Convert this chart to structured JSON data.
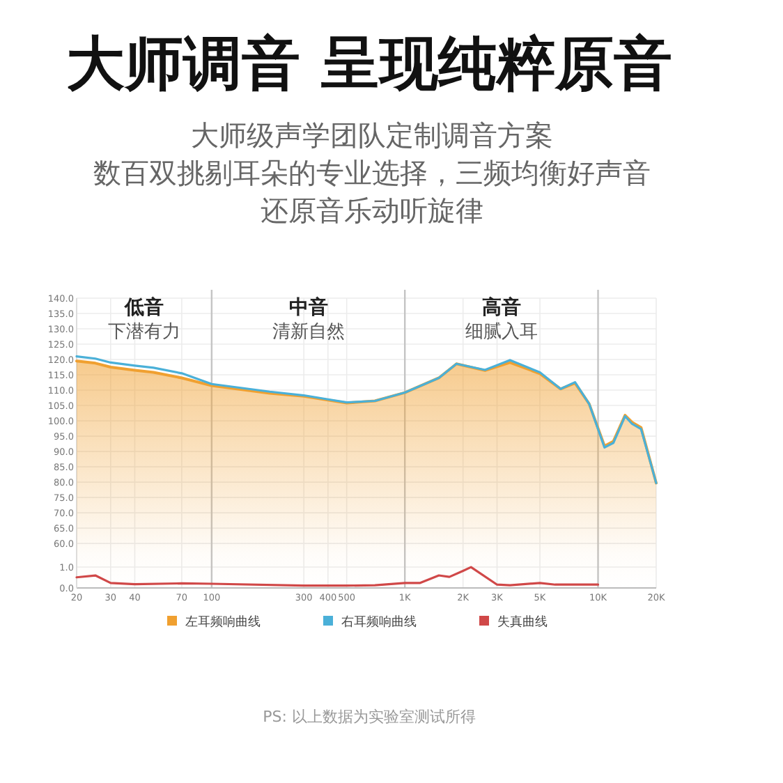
{
  "chart_data": {
    "type": "line",
    "title": "大师调音 呈现纯粹原音",
    "subtitle": "大师级声学团队定制调音方案",
    "log": "x",
    "xlim": [
      20,
      20000
    ],
    "xticks": [
      20,
      30,
      40,
      70,
      100,
      300,
      400,
      500,
      {
        "value": 1000,
        "label": "1K"
      },
      {
        "value": 2000,
        "label": "2K"
      },
      {
        "value": 3000,
        "label": "3K"
      },
      {
        "value": 5000,
        "label": "5K"
      },
      {
        "value": 10000,
        "label": "10K"
      },
      {
        "value": 20000,
        "label": "20K"
      }
    ],
    "ylim": [
      45.5,
      140
    ],
    "yticks": [
      {
        "value": 60,
        "label": "60.0"
      },
      {
        "value": 65,
        "label": "65.0"
      },
      {
        "value": 70,
        "label": "70.0"
      },
      {
        "value": 75,
        "label": "75.0"
      },
      {
        "value": 80,
        "label": "80.0"
      },
      {
        "value": 85,
        "label": "85.0"
      },
      {
        "value": 90,
        "label": "90.0"
      },
      {
        "value": 95,
        "label": "95.0"
      },
      {
        "value": 100,
        "label": "100.0"
      },
      {
        "value": 105,
        "label": "105.0"
      },
      {
        "value": 110,
        "label": "110.0"
      },
      {
        "value": 115,
        "label": "115.0"
      },
      {
        "value": 120,
        "label": "120.0"
      },
      {
        "value": 125,
        "label": "125.0"
      },
      {
        "value": 130,
        "label": "130.0"
      },
      {
        "value": 135,
        "label": "135.0"
      },
      {
        "value": 140,
        "label": "140.0"
      }
    ],
    "y2lim": [
      0,
      13.9
    ],
    "y2ticks": [
      {
        "value": 0,
        "label": "0.0"
      },
      {
        "value": 1,
        "label": "1.0"
      }
    ],
    "grid": true,
    "legend": "bottom",
    "x": [
      20,
      25,
      30,
      40,
      50,
      70,
      100,
      200,
      300,
      400,
      500,
      700,
      1000,
      1500,
      1850,
      2600,
      3500,
      5000,
      6400,
      7600,
      9000,
      10800,
      12000,
      13800,
      15000,
      16700,
      20000
    ],
    "series": [
      {
        "name": "左耳频响曲线",
        "type": "area",
        "color": "#f0a030",
        "values": [
          119.5,
          118.8,
          117.5,
          116.5,
          115.8,
          114,
          111.5,
          109,
          108,
          106.8,
          105.8,
          106.5,
          109.2,
          114,
          118.6,
          116.4,
          119,
          115.4,
          110.4,
          112.3,
          105.5,
          91.8,
          93.3,
          101.8,
          99.5,
          97.8,
          79.7
        ]
      },
      {
        "name": "右耳频响曲线",
        "color": "#4ab0d8",
        "values": [
          121,
          120.3,
          119,
          118,
          117.3,
          115.5,
          112,
          109.5,
          108.3,
          107,
          106,
          106.5,
          109.2,
          114,
          118.6,
          116.6,
          119.8,
          115.8,
          110.4,
          112.6,
          105.5,
          91.3,
          92.8,
          101.5,
          99,
          97.3,
          79.7
        ]
      },
      {
        "name": "失真曲线",
        "color": "#d04848",
        "axis": "y2",
        "x": [
          20,
          25,
          30,
          40,
          70,
          100,
          300,
          500,
          700,
          1000,
          1200,
          1500,
          1700,
          2000,
          2200,
          3000,
          3500,
          5000,
          6000,
          10000
        ],
        "values": [
          0.51,
          0.6,
          0.24,
          0.18,
          0.22,
          0.2,
          0.11,
          0.11,
          0.13,
          0.24,
          0.24,
          0.6,
          0.53,
          0.82,
          1.0,
          0.16,
          0.13,
          0.24,
          0.16,
          0.16
        ]
      }
    ],
    "annotations": [
      "数百双挑剔耳朵的专业选择，三频均衡好声音",
      "还原音乐动听旋律",
      "低音",
      "下潜有力",
      "中音",
      "清新自然",
      "高音",
      "细腻入耳",
      "PS: 以上数据为实验室测试所得"
    ]
  }
}
